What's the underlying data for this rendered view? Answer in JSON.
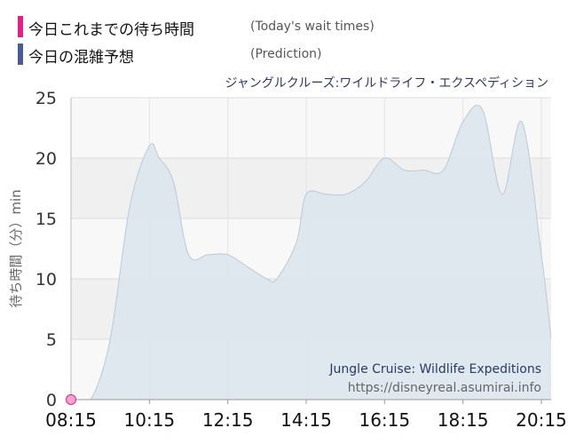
{
  "legend": {
    "actual": {
      "label": "今日これまでの待ち時間",
      "sublabel": "(Today's wait times)",
      "color": "#e0218a"
    },
    "forecast": {
      "label": "今日の混雑予想",
      "sublabel": "(Prediction)",
      "color": "#4a5a94"
    }
  },
  "chart_data": {
    "type": "area",
    "title": "ジャングルクルーズ:ワイルドライフ・エクスペディション",
    "ylabel": "待ち時間（分）min",
    "xlabel": "",
    "ylim": [
      0,
      25
    ],
    "yticks": [
      0,
      5,
      10,
      15,
      20,
      25
    ],
    "xlim": [
      "08:15",
      "20:30"
    ],
    "xticks": [
      "08:15",
      "10:15",
      "12:15",
      "14:15",
      "16:15",
      "18:15",
      "20:15"
    ],
    "grid": true,
    "watermark": {
      "line1": "Jungle Cruise: Wildlife Expeditions",
      "line2": "https://disneyreal.asumirai.info"
    },
    "series": [
      {
        "color": "#4a5a94",
        "fill": "#dbe5ed",
        "x": [
          "08:15",
          "08:45",
          "09:15",
          "09:45",
          "10:15",
          "10:30",
          "10:52",
          "11:15",
          "11:45",
          "12:15",
          "12:45",
          "13:15",
          "13:30",
          "14:00",
          "14:15",
          "14:45",
          "15:15",
          "15:45",
          "16:15",
          "16:45",
          "17:15",
          "17:45",
          "18:15",
          "18:45",
          "19:15",
          "19:45",
          "20:15",
          "20:30"
        ],
        "values": [
          0,
          0,
          5,
          16,
          21,
          20,
          18,
          12,
          12,
          12,
          11,
          10,
          10,
          13,
          17,
          17,
          17,
          18,
          20,
          19,
          19,
          19,
          23,
          24,
          17,
          23,
          12,
          5
        ]
      },
      {
        "color": "#e0218a",
        "x": [
          "08:15"
        ],
        "values": [
          0
        ]
      }
    ]
  }
}
